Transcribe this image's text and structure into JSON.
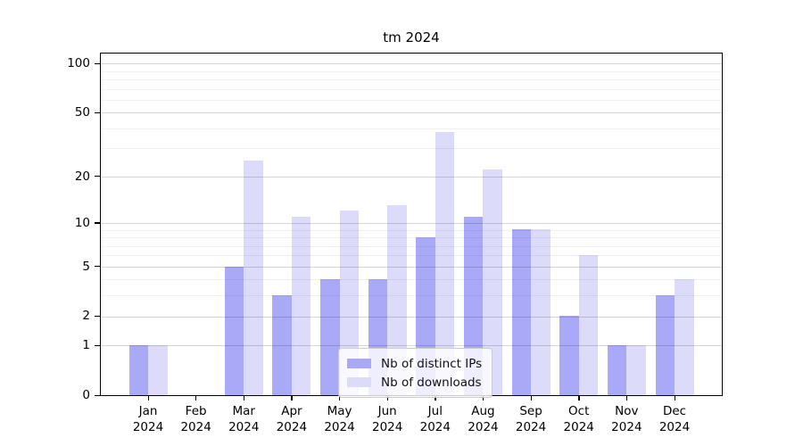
{
  "chart_data": {
    "type": "bar",
    "title": "tm 2024",
    "categories": [
      "Jan",
      "Feb",
      "Mar",
      "Apr",
      "May",
      "Jun",
      "Jul",
      "Aug",
      "Sep",
      "Oct",
      "Nov",
      "Dec"
    ],
    "category_year": "2024",
    "series": [
      {
        "name": "Nb of distinct IPs",
        "color": "#a9a9f7",
        "values": [
          1,
          0,
          5,
          3,
          4,
          4,
          8,
          11,
          9,
          2,
          1,
          3
        ]
      },
      {
        "name": "Nb of downloads",
        "color": "#dcdcfa",
        "values": [
          1,
          0,
          25,
          11,
          12,
          13,
          38,
          22,
          9,
          6,
          1,
          4
        ]
      }
    ],
    "y_ticks": [
      0,
      1,
      2,
      5,
      10,
      20,
      50,
      100
    ],
    "y_minor_gridlines": [
      3,
      4,
      6,
      7,
      8,
      9,
      30,
      40,
      60,
      70,
      80,
      90
    ],
    "y_scale": "log1p",
    "ylim": [
      0,
      115
    ],
    "xlabel": "",
    "ylabel": "",
    "grid": true,
    "legend_position": "lower center"
  }
}
